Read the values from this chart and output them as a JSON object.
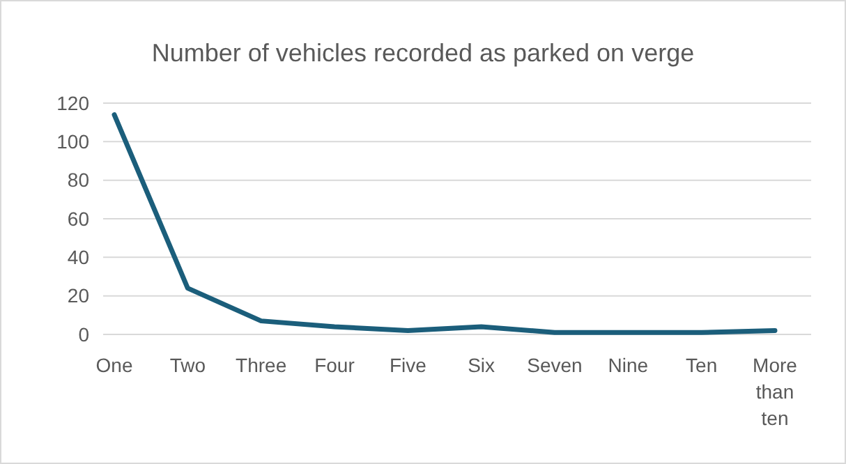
{
  "chart_data": {
    "type": "line",
    "title": "Number of vehicles recorded as parked on verge",
    "categories": [
      "One",
      "Two",
      "Three",
      "Four",
      "Five",
      "Six",
      "Seven",
      "Nine",
      "Ten",
      "More than ten"
    ],
    "series": [
      {
        "color": "#1b5e7b",
        "values": [
          114,
          24,
          7,
          4,
          2,
          4,
          1,
          1,
          1,
          2
        ]
      }
    ],
    "ylim": [
      0,
      120
    ],
    "yticks": [
      0,
      20,
      40,
      60,
      80,
      100,
      120
    ],
    "grid": "y",
    "marker": "none",
    "line_style": "solid"
  }
}
